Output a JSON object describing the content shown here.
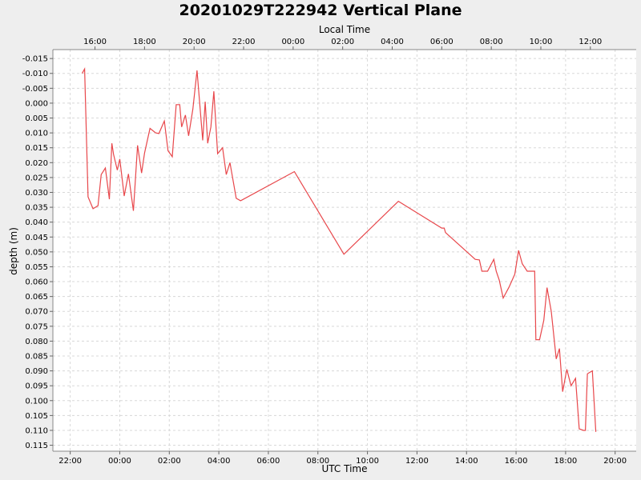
{
  "chart_data": {
    "type": "line",
    "title": "20201029T222942 Vertical Plane",
    "xlabel": "UTC Time",
    "x2label": "Local Time",
    "ylabel": "depth (m)",
    "y_inverted": true,
    "ylim": [
      -0.018,
      0.117
    ],
    "xlim_hours": [
      21.3,
      44.85
    ],
    "grid": true,
    "series_color": "#e8474b",
    "x_ticks": [
      {
        "h": 22,
        "label": "22:00"
      },
      {
        "h": 24,
        "label": "00:00"
      },
      {
        "h": 26,
        "label": "02:00"
      },
      {
        "h": 28,
        "label": "04:00"
      },
      {
        "h": 30,
        "label": "06:00"
      },
      {
        "h": 32,
        "label": "08:00"
      },
      {
        "h": 34,
        "label": "10:00"
      },
      {
        "h": 36,
        "label": "12:00"
      },
      {
        "h": 38,
        "label": "14:00"
      },
      {
        "h": 40,
        "label": "16:00"
      },
      {
        "h": 42,
        "label": "18:00"
      },
      {
        "h": 44,
        "label": "20:00"
      }
    ],
    "x2_ticks": [
      {
        "h": 23,
        "label": "16:00"
      },
      {
        "h": 25,
        "label": "18:00"
      },
      {
        "h": 27,
        "label": "20:00"
      },
      {
        "h": 29,
        "label": "22:00"
      },
      {
        "h": 31,
        "label": "00:00"
      },
      {
        "h": 33,
        "label": "02:00"
      },
      {
        "h": 35,
        "label": "04:00"
      },
      {
        "h": 37,
        "label": "06:00"
      },
      {
        "h": 39,
        "label": "08:00"
      },
      {
        "h": 41,
        "label": "10:00"
      },
      {
        "h": 43,
        "label": "12:00"
      }
    ],
    "y_ticks": [
      {
        "v": -0.015,
        "label": "-0.015"
      },
      {
        "v": -0.01,
        "label": "-0.010"
      },
      {
        "v": -0.005,
        "label": "-0.005"
      },
      {
        "v": 0.0,
        "label": "0.000"
      },
      {
        "v": 0.005,
        "label": "0.005"
      },
      {
        "v": 0.01,
        "label": "0.010"
      },
      {
        "v": 0.015,
        "label": "0.015"
      },
      {
        "v": 0.02,
        "label": "0.020"
      },
      {
        "v": 0.025,
        "label": "0.025"
      },
      {
        "v": 0.03,
        "label": "0.030"
      },
      {
        "v": 0.035,
        "label": "0.035"
      },
      {
        "v": 0.04,
        "label": "0.040"
      },
      {
        "v": 0.045,
        "label": "0.045"
      },
      {
        "v": 0.05,
        "label": "0.050"
      },
      {
        "v": 0.055,
        "label": "0.055"
      },
      {
        "v": 0.06,
        "label": "0.060"
      },
      {
        "v": 0.065,
        "label": "0.065"
      },
      {
        "v": 0.07,
        "label": "0.070"
      },
      {
        "v": 0.075,
        "label": "0.075"
      },
      {
        "v": 0.08,
        "label": "0.080"
      },
      {
        "v": 0.085,
        "label": "0.085"
      },
      {
        "v": 0.09,
        "label": "0.090"
      },
      {
        "v": 0.095,
        "label": "0.095"
      },
      {
        "v": 0.1,
        "label": "0.100"
      },
      {
        "v": 0.105,
        "label": "0.105"
      },
      {
        "v": 0.11,
        "label": "0.110"
      },
      {
        "v": 0.115,
        "label": "0.115"
      }
    ],
    "series": [
      {
        "x_hours": [
          22.48,
          22.58,
          22.72,
          22.92,
          23.12,
          23.25,
          23.42,
          23.58,
          23.68,
          23.75,
          23.9,
          24.0,
          24.18,
          24.35,
          24.55,
          24.72,
          24.88,
          25.0,
          25.22,
          25.45,
          25.58,
          25.8,
          25.95,
          26.12,
          26.28,
          26.42,
          26.5,
          26.65,
          26.78,
          26.95,
          27.12,
          27.35,
          27.45,
          27.55,
          27.68,
          27.8,
          27.95,
          28.15,
          28.3,
          28.45,
          28.7,
          28.88,
          31.05,
          33.05,
          35.25,
          37.0,
          37.1,
          37.15,
          38.35,
          38.52,
          38.62,
          38.85,
          39.1,
          39.2,
          39.32,
          39.48,
          39.72,
          39.95,
          40.1,
          40.25,
          40.45,
          40.6,
          40.75,
          40.8,
          40.95,
          41.12,
          41.25,
          41.42,
          41.62,
          41.75,
          41.88,
          42.05,
          42.22,
          42.4,
          42.55,
          42.72,
          42.8,
          42.88,
          42.97,
          43.08,
          43.22
        ],
        "depth": [
          -0.01,
          -0.0115,
          0.0315,
          0.0355,
          0.0345,
          0.024,
          0.0218,
          0.0323,
          0.0135,
          0.0172,
          0.0225,
          0.0188,
          0.0312,
          0.0238,
          0.0362,
          0.0142,
          0.0235,
          0.0168,
          0.0085,
          0.01,
          0.0102,
          0.006,
          0.016,
          0.018,
          0.0005,
          0.0005,
          0.008,
          0.004,
          0.011,
          0.002,
          -0.011,
          0.0125,
          -0.0005,
          0.0135,
          0.008,
          -0.004,
          0.017,
          0.015,
          0.024,
          0.02,
          0.032,
          0.0328,
          0.023,
          0.0508,
          0.033,
          0.042,
          0.042,
          0.0435,
          0.0525,
          0.0527,
          0.0565,
          0.0565,
          0.0525,
          0.0565,
          0.0595,
          0.0655,
          0.0618,
          0.0575,
          0.0495,
          0.054,
          0.0565,
          0.0565,
          0.0565,
          0.0795,
          0.0795,
          0.073,
          0.062,
          0.07,
          0.086,
          0.0825,
          0.097,
          0.0895,
          0.095,
          0.0925,
          0.1095,
          0.11,
          0.11,
          0.091,
          0.0905,
          0.09,
          0.1105
        ]
      }
    ]
  }
}
